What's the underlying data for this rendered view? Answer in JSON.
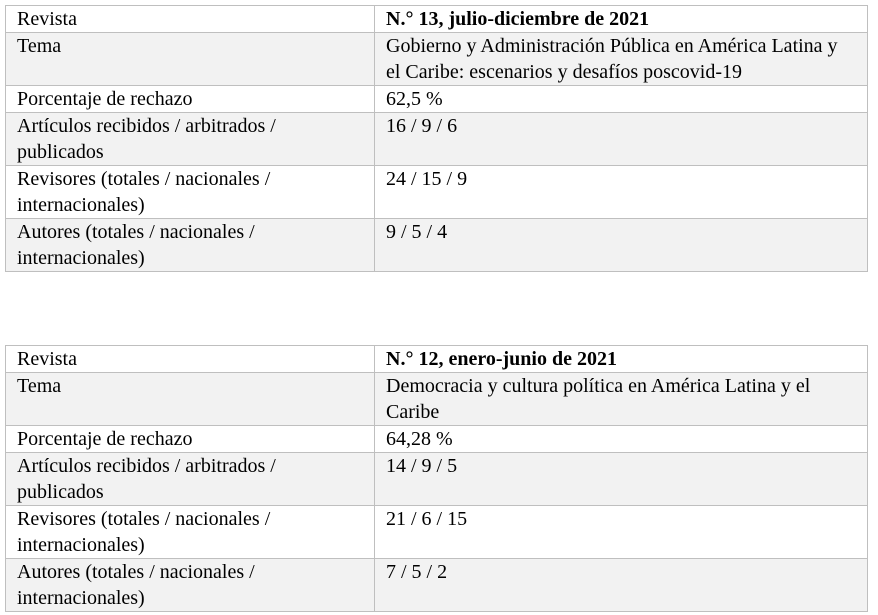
{
  "tables": [
    {
      "rows": [
        [
          "Revista",
          "N.° 13, julio-diciembre de 2021"
        ],
        [
          "Tema",
          "Gobierno y Administración Pública en América Latina y el Caribe: escenarios y desafíos poscovid-19"
        ],
        [
          "Porcentaje de rechazo",
          "62,5 %"
        ],
        [
          "Artículos recibidos / arbitrados / publicados",
          "16 / 9 / 6"
        ],
        [
          "Revisores (totales / nacionales / internacionales)",
          "24 / 15 / 9"
        ],
        [
          "Autores (totales / nacionales / internacionales)",
          "9 / 5 / 4"
        ]
      ]
    },
    {
      "rows": [
        [
          "Revista",
          "N.° 12, enero-junio de 2021"
        ],
        [
          "Tema",
          "Democracia y cultura política en América Latina y el Caribe"
        ],
        [
          "Porcentaje de rechazo",
          "64,28 %"
        ],
        [
          "Artículos recibidos / arbitrados / publicados",
          "14 / 9 / 5"
        ],
        [
          "Revisores (totales / nacionales / internacionales)",
          "21 / 6 / 15"
        ],
        [
          "Autores (totales / nacionales / internacionales)",
          "7 / 5 / 2"
        ]
      ]
    }
  ]
}
